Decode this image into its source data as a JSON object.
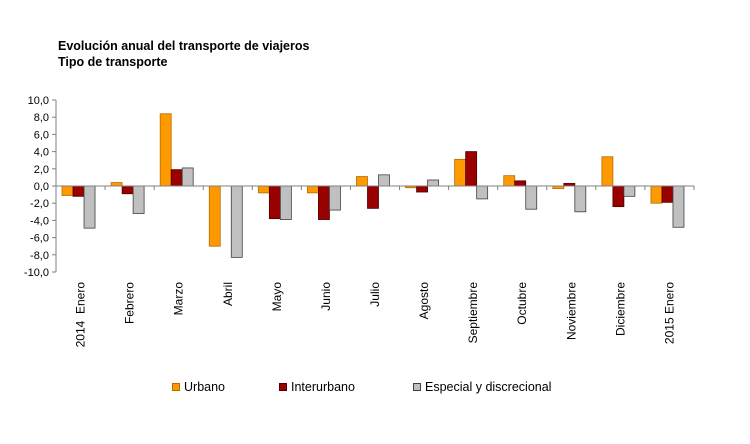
{
  "chart_data": {
    "type": "bar",
    "title": "Evolución anual del transporte de viajeros",
    "subtitle": "Tipo de transporte",
    "xlabel": "",
    "ylabel": "",
    "ylim": [
      -10,
      10
    ],
    "yticks": [
      10,
      8,
      6,
      4,
      2,
      0,
      -2,
      -4,
      -6,
      -8,
      -10
    ],
    "ytick_labels": [
      "10,0",
      "8,0",
      "6,0",
      "4,0",
      "2,0",
      "0,0",
      "-2,0",
      "-4,0",
      "-6,0",
      "-8,0",
      "-10,0"
    ],
    "grid": false,
    "legend_position": "bottom",
    "categories": [
      "2014  Enero",
      "Febrero",
      "Marzo",
      "Abril",
      "Mayo",
      "Junio",
      "Julio",
      "Agosto",
      "Septiembre",
      "Octubre",
      "Noviembre",
      "Diciembre",
      "2015 Enero"
    ],
    "series": [
      {
        "name": "Urbano",
        "color": "#FF9900",
        "border": "#B36B00",
        "values": [
          -1.1,
          0.4,
          8.4,
          -7.0,
          -0.8,
          -0.8,
          1.1,
          -0.2,
          3.1,
          1.2,
          -0.3,
          3.4,
          -2.0
        ]
      },
      {
        "name": "Interurbano",
        "color": "#990000",
        "border": "#4d0000",
        "values": [
          -1.2,
          -0.9,
          1.9,
          0.0,
          -3.8,
          -3.9,
          -2.6,
          -0.7,
          4.0,
          0.6,
          0.3,
          -2.4,
          -1.9
        ]
      },
      {
        "name": "Especial y discrecional",
        "color": "#C0C0C0",
        "border": "#404040",
        "values": [
          -4.9,
          -3.2,
          2.1,
          -8.3,
          -3.9,
          -2.8,
          1.3,
          0.7,
          -1.5,
          -2.7,
          -3.0,
          -1.2,
          -4.8
        ]
      }
    ]
  }
}
